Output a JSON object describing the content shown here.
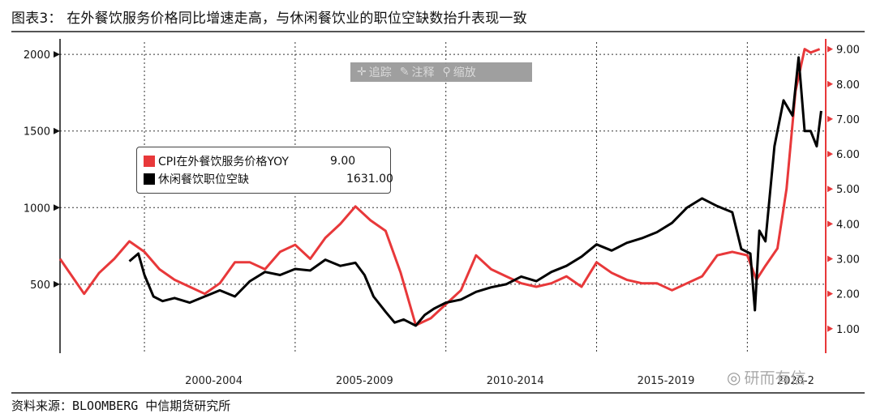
{
  "title": "图表3： 在外餐饮服务价格同比增速走高，与休闲餐饮业的职位空缺数抬升表现一致",
  "source": "资料来源：BLOOMBERG  中信期货研究所",
  "toolbar": {
    "track": {
      "icon": "crosshair-icon",
      "label": "追踪"
    },
    "annotate": {
      "icon": "pencil-icon",
      "label": "注释"
    },
    "zoom": {
      "icon": "magnifier-icon",
      "label": "缩放"
    }
  },
  "watermark": {
    "icon": "wechat-icon",
    "text": "研而有信"
  },
  "legend": [
    {
      "name": "CPI在外餐饮服务价格YOY",
      "value": "9.00",
      "color": "#e8383a"
    },
    {
      "name": "休闲餐饮职位空缺",
      "value": "1631.00",
      "color": "#000000"
    }
  ],
  "chart_data": {
    "type": "line",
    "x_tick_labels": [
      "2000-2004",
      "2005-2009",
      "2010-2014",
      "2015-2019",
      "2020-2"
    ],
    "left_axis": {
      "ticks": [
        "500",
        "1000",
        "1500",
        "2000"
      ],
      "ylim": [
        50,
        2080
      ]
    },
    "right_axis": {
      "ticks": [
        "1.00",
        "2.00",
        "3.00",
        "4.00",
        "5.00",
        "6.00",
        "7.00",
        "8.00",
        "9.00"
      ],
      "ylim": [
        0.3,
        9.2
      ]
    },
    "xlim": [
      1997.2,
      2022.6
    ],
    "grid": true,
    "series": [
      {
        "name": "CPI在外餐饮服务价格YOY",
        "axis": "right",
        "color": "#e8383a",
        "x": [
          1997.2,
          1997.6,
          1998.0,
          1998.5,
          1999.0,
          1999.5,
          2000.0,
          2000.5,
          2001.0,
          2001.5,
          2002.0,
          2002.5,
          2003.0,
          2003.5,
          2004.0,
          2004.5,
          2005.0,
          2005.5,
          2006.0,
          2006.5,
          2007.0,
          2007.5,
          2008.0,
          2008.5,
          2009.0,
          2009.5,
          2010.0,
          2010.5,
          2011.0,
          2011.5,
          2012.0,
          2012.5,
          2013.0,
          2013.5,
          2014.0,
          2014.5,
          2015.0,
          2015.5,
          2016.0,
          2016.5,
          2017.0,
          2017.5,
          2018.0,
          2018.5,
          2019.0,
          2019.5,
          2020.0,
          2020.3,
          2020.6,
          2021.0,
          2021.3,
          2021.6,
          2021.9,
          2022.1,
          2022.4
        ],
        "y": [
          3.0,
          2.5,
          2.0,
          2.6,
          3.0,
          3.5,
          3.2,
          2.7,
          2.4,
          2.2,
          2.0,
          2.3,
          2.9,
          2.9,
          2.7,
          3.2,
          3.4,
          3.0,
          3.6,
          4.0,
          4.5,
          4.1,
          3.8,
          2.6,
          1.1,
          1.3,
          1.7,
          2.1,
          3.1,
          2.7,
          2.5,
          2.3,
          2.2,
          2.3,
          2.5,
          2.2,
          2.9,
          2.6,
          2.4,
          2.3,
          2.3,
          2.1,
          2.3,
          2.5,
          3.1,
          3.2,
          3.1,
          2.4,
          2.8,
          3.3,
          5.0,
          7.8,
          9.0,
          8.9,
          9.0
        ]
      },
      {
        "name": "休闲餐饮职位空缺",
        "axis": "left",
        "color": "#000000",
        "x": [
          1999.5,
          1999.8,
          2000.0,
          2000.3,
          2000.6,
          2001.0,
          2001.5,
          2002.0,
          2002.5,
          2003.0,
          2003.5,
          2004.0,
          2004.5,
          2005.0,
          2005.5,
          2006.0,
          2006.5,
          2007.0,
          2007.3,
          2007.6,
          2008.0,
          2008.3,
          2008.6,
          2009.0,
          2009.3,
          2009.6,
          2010.0,
          2010.5,
          2011.0,
          2011.5,
          2012.0,
          2012.5,
          2013.0,
          2013.5,
          2014.0,
          2014.5,
          2015.0,
          2015.5,
          2016.0,
          2016.5,
          2017.0,
          2017.5,
          2018.0,
          2018.5,
          2019.0,
          2019.5,
          2019.8,
          2020.1,
          2020.25,
          2020.4,
          2020.6,
          2020.9,
          2021.2,
          2021.5,
          2021.7,
          2021.9,
          2022.1,
          2022.3,
          2022.45
        ],
        "y": [
          650,
          700,
          560,
          420,
          390,
          410,
          380,
          420,
          460,
          420,
          520,
          580,
          560,
          600,
          590,
          660,
          620,
          640,
          560,
          420,
          320,
          250,
          270,
          230,
          300,
          340,
          380,
          400,
          450,
          480,
          500,
          550,
          520,
          580,
          620,
          680,
          760,
          720,
          770,
          800,
          840,
          900,
          1000,
          1060,
          1010,
          970,
          730,
          700,
          330,
          850,
          780,
          1400,
          1700,
          1600,
          1980,
          1500,
          1500,
          1400,
          1631
        ]
      }
    ]
  }
}
